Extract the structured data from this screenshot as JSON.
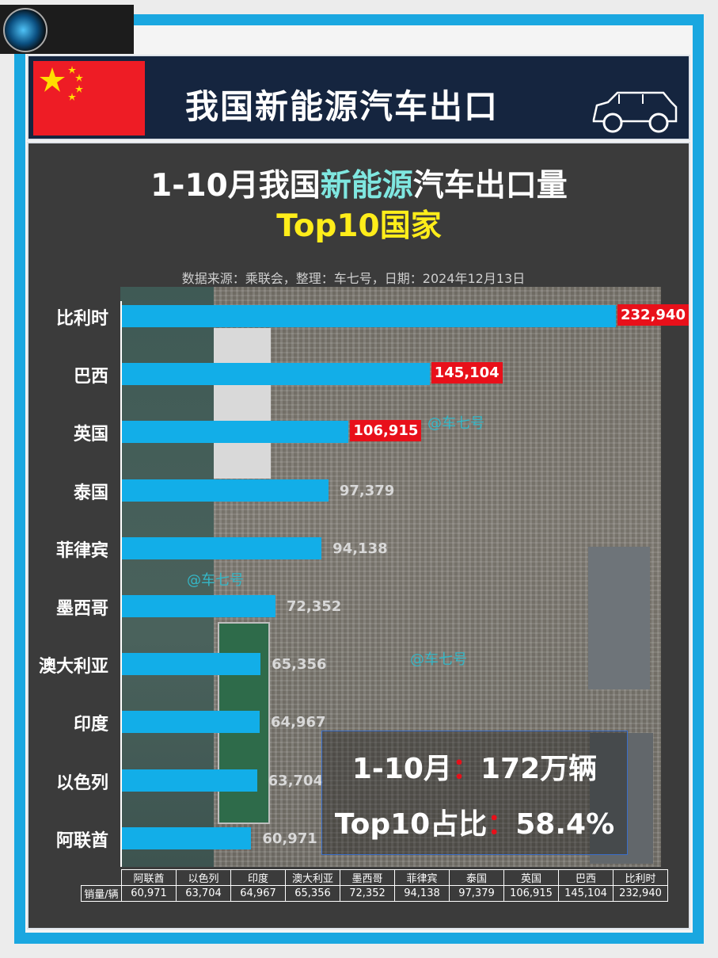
{
  "header": {
    "title": "我国新能源汽车出口"
  },
  "chart_data": {
    "type": "bar",
    "orientation": "horizontal",
    "title_parts": [
      "1-10月我国",
      "新能源",
      "汽车出口量"
    ],
    "subtitle": "Top10国家",
    "source": "数据来源：乘联会，整理：车七号，日期：2024年12月13日",
    "categories": [
      "比利时",
      "巴西",
      "英国",
      "泰国",
      "菲律宾",
      "墨西哥",
      "澳大利亚",
      "印度",
      "以色列",
      "阿联酋"
    ],
    "values": [
      232940,
      145104,
      106915,
      97379,
      94138,
      72352,
      65356,
      64967,
      63704,
      60971
    ],
    "value_labels": [
      "232,940",
      "145,104",
      "106,915",
      "97,379",
      "94,138",
      "72,352",
      "65,356",
      "64,967",
      "63,704",
      "60,971"
    ],
    "highlighted_top": 3,
    "colors": {
      "bar": "#12aee8",
      "highlight_label": "#e8101a",
      "title_accent": "#7fe7e0",
      "subtitle": "#ffed1a"
    }
  },
  "watermarks": [
    "@车七号",
    "@车七号",
    "@车七号"
  ],
  "stats": {
    "line1_label": "1-10月",
    "line1_sep": "：",
    "line1_value": "172万辆",
    "line2_label": "Top10占比",
    "line2_sep": "：",
    "line2_value": "58.4%"
  },
  "table": {
    "row_label": "销量/辆",
    "headers": [
      "阿联酋",
      "以色列",
      "印度",
      "澳大利亚",
      "墨西哥",
      "菲律宾",
      "泰国",
      "英国",
      "巴西",
      "比利时"
    ],
    "values": [
      "60,971",
      "63,704",
      "64,967",
      "65,356",
      "72,352",
      "94,138",
      "97,379",
      "106,915",
      "145,104",
      "232,940"
    ]
  }
}
